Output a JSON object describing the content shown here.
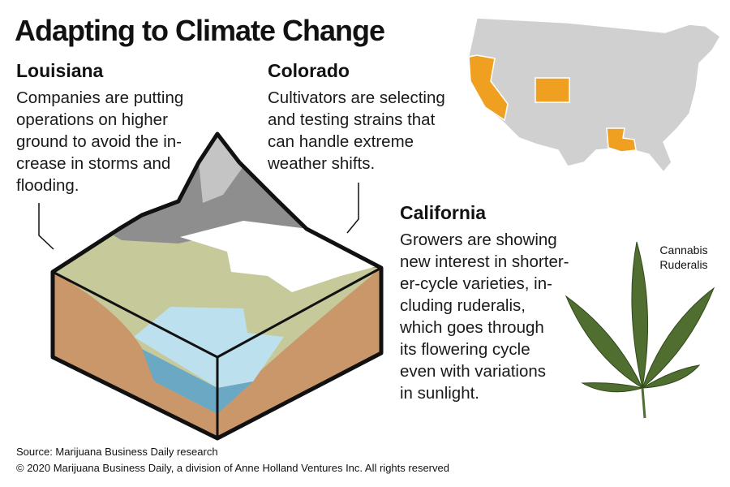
{
  "title": "Adapting to Climate Change",
  "sections": [
    {
      "heading": "Louisiana",
      "lines": [
        "Companies are putting",
        "operations on higher",
        "ground to avoid the in-",
        "crease in storms and",
        "flooding."
      ]
    },
    {
      "heading": "Colorado",
      "lines": [
        "Cultivators are selecting",
        "and testing strains that",
        "can handle extreme",
        "weather shifts."
      ]
    },
    {
      "heading": "California",
      "lines": [
        "Growers are showing",
        "new interest in shorter-",
        "er-cycle varieties, in-",
        "cluding ruderalis,",
        "which goes through",
        "its flowering cycle",
        "even with variations",
        "in sunlight."
      ]
    }
  ],
  "leaf_label": [
    "Cannabis",
    "Ruderalis"
  ],
  "footer": {
    "source": "Source: Marijuana Business Daily research",
    "copyright": "© 2020 Marijuana Business Daily, a division of Anne Holland Ventures Inc. All rights reserved"
  }
}
